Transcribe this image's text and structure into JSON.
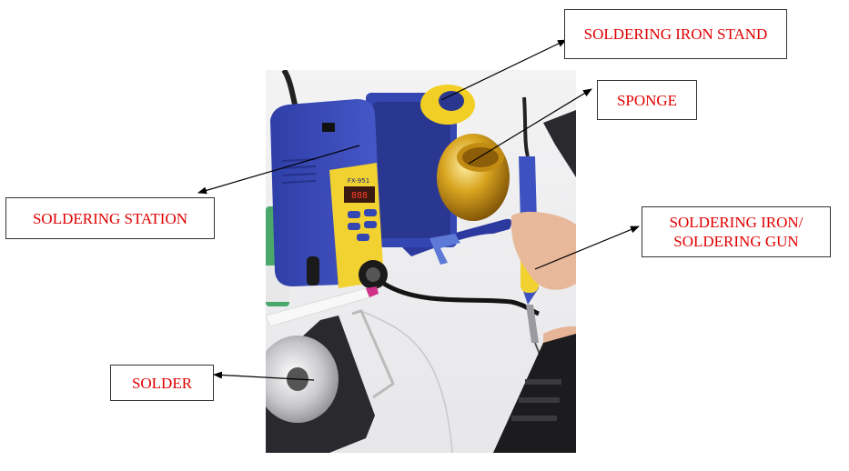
{
  "labels": {
    "stand": "SOLDERING IRON STAND",
    "sponge": "SPONGE",
    "station": "SOLDERING STATION",
    "iron": "SOLDERING IRON/ SOLDERING GUN",
    "solder": "SOLDER"
  },
  "station_display": "FX-951"
}
